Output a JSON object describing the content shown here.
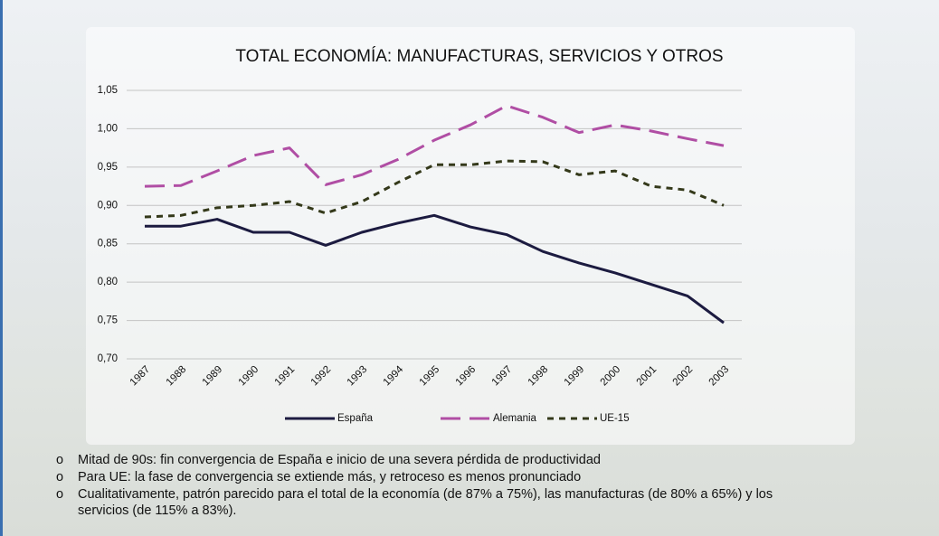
{
  "chart_data": {
    "type": "line",
    "title": "TOTAL ECONOMÍA: MANUFACTURAS, SERVICIOS Y OTROS",
    "categories": [
      "1987",
      "1988",
      "1989",
      "1990",
      "1991",
      "1992",
      "1993",
      "1994",
      "1995",
      "1996",
      "1997",
      "1998",
      "1999",
      "2000",
      "2001",
      "2002",
      "2003"
    ],
    "series": [
      {
        "name": "España",
        "color": "#1c1b40",
        "dash": "solid",
        "values": [
          0.873,
          0.873,
          0.882,
          0.865,
          0.865,
          0.848,
          0.865,
          0.877,
          0.887,
          0.872,
          0.862,
          0.84,
          0.825,
          0.812,
          0.797,
          0.782,
          0.747
        ]
      },
      {
        "name": "Alemania",
        "color": "#b04ea4",
        "dash": "long",
        "values": [
          0.925,
          0.926,
          0.945,
          0.965,
          0.975,
          0.927,
          0.94,
          0.96,
          0.985,
          1.005,
          1.03,
          1.015,
          0.995,
          1.005,
          0.997,
          0.987,
          0.978
        ]
      },
      {
        "name": "UE-15",
        "color": "#34391a",
        "dash": "short",
        "values": [
          0.885,
          0.887,
          0.897,
          0.9,
          0.905,
          0.89,
          0.905,
          0.93,
          0.953,
          0.953,
          0.958,
          0.957,
          0.94,
          0.945,
          0.925,
          0.92,
          0.9
        ]
      }
    ],
    "ylim": [
      0.7,
      1.05
    ],
    "yticks": [
      {
        "value": 0.7,
        "label": "0,70"
      },
      {
        "value": 0.75,
        "label": "0,75"
      },
      {
        "value": 0.8,
        "label": "0,80"
      },
      {
        "value": 0.85,
        "label": "0,85"
      },
      {
        "value": 0.9,
        "label": "0,90"
      },
      {
        "value": 0.95,
        "label": "0,95"
      },
      {
        "value": 1.0,
        "label": "1,00"
      },
      {
        "value": 1.05,
        "label": "1,05"
      }
    ],
    "grid": true,
    "legend": "bottom"
  },
  "bullets": [
    "Mitad de 90s: fin convergencia de España e inicio de una severa pérdida de productividad",
    "Para UE: la fase de convergencia se extiende más, y retroceso es menos pronunciado",
    "Cualitativamente, patrón parecido para el total de la economía (de 87% a 75%), las manufacturas (de 80% a 65%) y los servicios (de 115% a 83%)."
  ]
}
